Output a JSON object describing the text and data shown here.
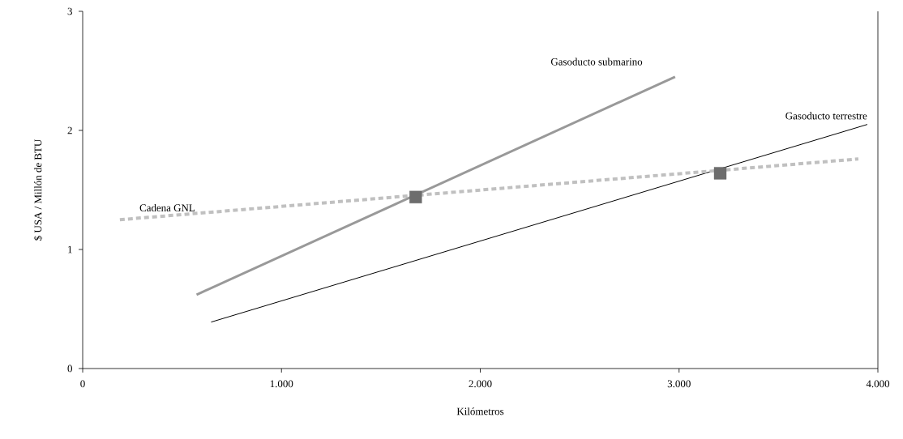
{
  "chart_data": {
    "type": "line",
    "xlabel": "Kilómetros",
    "ylabel": "$ USA / Millón de BTU",
    "series": [
      {
        "name": "Gasoducto submarino",
        "color": "#999999",
        "x": [
          573,
          2980
        ],
        "values": [
          0.62,
          2.45
        ],
        "line_style": "solid"
      },
      {
        "name": "Gasoducto terrestre",
        "color": "#000000",
        "x": [
          646,
          3947
        ],
        "values": [
          0.39,
          2.05
        ],
        "line_style": "solid"
      },
      {
        "name": "Cadena GNL",
        "color": "#c0c0c0",
        "x": [
          187,
          3902
        ],
        "values": [
          1.25,
          1.76
        ],
        "line_style": "dashed"
      },
      {
        "type": "scatter",
        "color": "#6d6d6d",
        "marker": "square",
        "x": [
          1675,
          3207
        ],
        "values": [
          1.44,
          1.64
        ]
      }
    ],
    "marker": "none",
    "xlim": [
      0,
      4000
    ],
    "ylim": [
      0,
      3
    ],
    "xticks": [
      0,
      {
        "value": 1000,
        "label": "1.000"
      },
      {
        "value": 2000,
        "label": "2.000"
      },
      {
        "value": 3000,
        "label": "3.000"
      },
      {
        "value": 4000,
        "label": "4.000"
      }
    ],
    "yticks": [
      0,
      1,
      2,
      3
    ],
    "grid": false
  }
}
